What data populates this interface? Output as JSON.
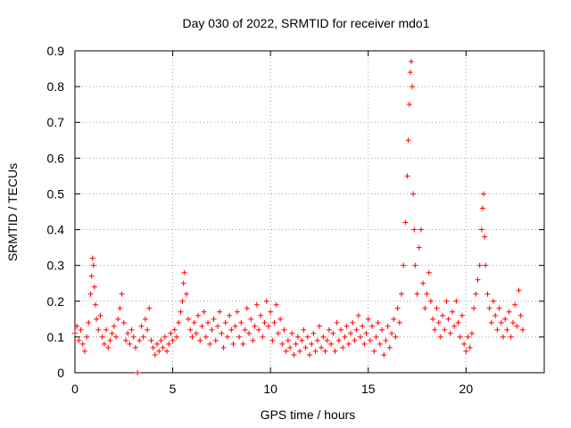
{
  "chart_data": {
    "type": "scatter",
    "title": "Day 030 of 2022, SRMTID for receiver mdo1",
    "xlabel": "GPS time / hours",
    "ylabel": "SRMTID / TECUs",
    "xlim": [
      0,
      24
    ],
    "ylim": [
      0,
      0.9
    ],
    "xticks": [
      "0",
      "5",
      "10",
      "15",
      "20"
    ],
    "yticks": [
      "0",
      "0.1",
      "0.2",
      "0.3",
      "0.4",
      "0.5",
      "0.6",
      "0.7",
      "0.8",
      "0.9"
    ],
    "grid": true,
    "marker": "plus",
    "color": "#ff0000",
    "series": [
      {
        "name": "SRMTID",
        "points": [
          [
            0.0,
            0.11
          ],
          [
            0.1,
            0.13
          ],
          [
            0.2,
            0.09
          ],
          [
            0.3,
            0.12
          ],
          [
            0.4,
            0.08
          ],
          [
            0.5,
            0.06
          ],
          [
            0.6,
            0.1
          ],
          [
            0.7,
            0.14
          ],
          [
            0.8,
            0.22
          ],
          [
            0.85,
            0.27
          ],
          [
            0.9,
            0.32
          ],
          [
            0.95,
            0.3
          ],
          [
            1.0,
            0.24
          ],
          [
            1.05,
            0.19
          ],
          [
            1.1,
            0.15
          ],
          [
            1.2,
            0.12
          ],
          [
            1.3,
            0.16
          ],
          [
            1.4,
            0.1
          ],
          [
            1.5,
            0.08
          ],
          [
            1.6,
            0.12
          ],
          [
            1.7,
            0.07
          ],
          [
            1.8,
            0.09
          ],
          [
            1.9,
            0.11
          ],
          [
            2.0,
            0.13
          ],
          [
            2.1,
            0.1
          ],
          [
            2.2,
            0.15
          ],
          [
            2.3,
            0.18
          ],
          [
            2.4,
            0.22
          ],
          [
            2.5,
            0.14
          ],
          [
            2.6,
            0.09
          ],
          [
            2.7,
            0.11
          ],
          [
            2.8,
            0.08
          ],
          [
            2.9,
            0.12
          ],
          [
            3.0,
            0.1
          ],
          [
            3.1,
            0.07
          ],
          [
            3.2,
            0.0
          ],
          [
            3.3,
            0.09
          ],
          [
            3.4,
            0.13
          ],
          [
            3.5,
            0.1
          ],
          [
            3.6,
            0.15
          ],
          [
            3.7,
            0.12
          ],
          [
            3.8,
            0.18
          ],
          [
            3.9,
            0.09
          ],
          [
            4.0,
            0.07
          ],
          [
            4.1,
            0.05
          ],
          [
            4.2,
            0.08
          ],
          [
            4.3,
            0.06
          ],
          [
            4.4,
            0.09
          ],
          [
            4.5,
            0.07
          ],
          [
            4.6,
            0.1
          ],
          [
            4.7,
            0.06
          ],
          [
            4.8,
            0.08
          ],
          [
            4.9,
            0.11
          ],
          [
            5.0,
            0.09
          ],
          [
            5.1,
            0.12
          ],
          [
            5.2,
            0.1
          ],
          [
            5.3,
            0.14
          ],
          [
            5.4,
            0.17
          ],
          [
            5.5,
            0.2
          ],
          [
            5.55,
            0.25
          ],
          [
            5.6,
            0.28
          ],
          [
            5.7,
            0.22
          ],
          [
            5.8,
            0.15
          ],
          [
            5.9,
            0.12
          ],
          [
            6.0,
            0.1
          ],
          [
            6.1,
            0.14
          ],
          [
            6.2,
            0.11
          ],
          [
            6.3,
            0.16
          ],
          [
            6.4,
            0.09
          ],
          [
            6.5,
            0.13
          ],
          [
            6.6,
            0.17
          ],
          [
            6.7,
            0.1
          ],
          [
            6.8,
            0.14
          ],
          [
            6.9,
            0.08
          ],
          [
            7.0,
            0.12
          ],
          [
            7.1,
            0.15
          ],
          [
            7.2,
            0.09
          ],
          [
            7.3,
            0.13
          ],
          [
            7.4,
            0.17
          ],
          [
            7.5,
            0.11
          ],
          [
            7.6,
            0.07
          ],
          [
            7.7,
            0.14
          ],
          [
            7.8,
            0.1
          ],
          [
            7.9,
            0.16
          ],
          [
            8.0,
            0.12
          ],
          [
            8.1,
            0.08
          ],
          [
            8.2,
            0.13
          ],
          [
            8.3,
            0.17
          ],
          [
            8.4,
            0.1
          ],
          [
            8.5,
            0.14
          ],
          [
            8.6,
            0.08
          ],
          [
            8.7,
            0.12
          ],
          [
            8.8,
            0.18
          ],
          [
            8.9,
            0.11
          ],
          [
            9.0,
            0.15
          ],
          [
            9.1,
            0.09
          ],
          [
            9.2,
            0.13
          ],
          [
            9.3,
            0.19
          ],
          [
            9.4,
            0.12
          ],
          [
            9.5,
            0.16
          ],
          [
            9.6,
            0.1
          ],
          [
            9.7,
            0.14
          ],
          [
            9.8,
            0.2
          ],
          [
            9.9,
            0.13
          ],
          [
            10.0,
            0.17
          ],
          [
            10.1,
            0.09
          ],
          [
            10.2,
            0.14
          ],
          [
            10.3,
            0.19
          ],
          [
            10.4,
            0.11
          ],
          [
            10.5,
            0.15
          ],
          [
            10.6,
            0.08
          ],
          [
            10.7,
            0.12
          ],
          [
            10.8,
            0.06
          ],
          [
            10.9,
            0.09
          ],
          [
            11.0,
            0.07
          ],
          [
            11.1,
            0.11
          ],
          [
            11.2,
            0.05
          ],
          [
            11.3,
            0.08
          ],
          [
            11.4,
            0.1
          ],
          [
            11.5,
            0.06
          ],
          [
            11.6,
            0.09
          ],
          [
            11.7,
            0.12
          ],
          [
            11.8,
            0.07
          ],
          [
            11.9,
            0.1
          ],
          [
            12.0,
            0.05
          ],
          [
            12.1,
            0.08
          ],
          [
            12.2,
            0.11
          ],
          [
            12.3,
            0.06
          ],
          [
            12.4,
            0.09
          ],
          [
            12.5,
            0.13
          ],
          [
            12.6,
            0.07
          ],
          [
            12.7,
            0.1
          ],
          [
            12.8,
            0.06
          ],
          [
            12.9,
            0.09
          ],
          [
            13.0,
            0.12
          ],
          [
            13.1,
            0.08
          ],
          [
            13.2,
            0.11
          ],
          [
            13.3,
            0.06
          ],
          [
            13.4,
            0.14
          ],
          [
            13.5,
            0.09
          ],
          [
            13.6,
            0.12
          ],
          [
            13.7,
            0.07
          ],
          [
            13.8,
            0.1
          ],
          [
            13.9,
            0.13
          ],
          [
            14.0,
            0.08
          ],
          [
            14.1,
            0.11
          ],
          [
            14.2,
            0.14
          ],
          [
            14.3,
            0.09
          ],
          [
            14.4,
            0.12
          ],
          [
            14.5,
            0.16
          ],
          [
            14.6,
            0.1
          ],
          [
            14.7,
            0.13
          ],
          [
            14.8,
            0.08
          ],
          [
            14.9,
            0.11
          ],
          [
            15.0,
            0.15
          ],
          [
            15.1,
            0.09
          ],
          [
            15.2,
            0.13
          ],
          [
            15.3,
            0.06
          ],
          [
            15.4,
            0.1
          ],
          [
            15.5,
            0.14
          ],
          [
            15.6,
            0.08
          ],
          [
            15.7,
            0.12
          ],
          [
            15.8,
            0.05
          ],
          [
            15.9,
            0.09
          ],
          [
            16.0,
            0.13
          ],
          [
            16.1,
            0.07
          ],
          [
            16.2,
            0.11
          ],
          [
            16.3,
            0.15
          ],
          [
            16.4,
            0.1
          ],
          [
            16.5,
            0.18
          ],
          [
            16.6,
            0.14
          ],
          [
            16.7,
            0.22
          ],
          [
            16.8,
            0.3
          ],
          [
            16.9,
            0.42
          ],
          [
            17.0,
            0.55
          ],
          [
            17.05,
            0.65
          ],
          [
            17.1,
            0.75
          ],
          [
            17.15,
            0.84
          ],
          [
            17.2,
            0.87
          ],
          [
            17.25,
            0.8
          ],
          [
            17.3,
            0.5
          ],
          [
            17.35,
            0.4
          ],
          [
            17.4,
            0.3
          ],
          [
            17.5,
            0.22
          ],
          [
            17.6,
            0.35
          ],
          [
            17.7,
            0.4
          ],
          [
            17.8,
            0.25
          ],
          [
            17.9,
            0.18
          ],
          [
            18.0,
            0.22
          ],
          [
            18.1,
            0.28
          ],
          [
            18.2,
            0.2
          ],
          [
            18.3,
            0.15
          ],
          [
            18.4,
            0.12
          ],
          [
            18.5,
            0.18
          ],
          [
            18.6,
            0.14
          ],
          [
            18.7,
            0.1
          ],
          [
            18.8,
            0.16
          ],
          [
            18.9,
            0.12
          ],
          [
            19.0,
            0.2
          ],
          [
            19.1,
            0.15
          ],
          [
            19.2,
            0.11
          ],
          [
            19.3,
            0.17
          ],
          [
            19.4,
            0.13
          ],
          [
            19.5,
            0.2
          ],
          [
            19.6,
            0.14
          ],
          [
            19.7,
            0.1
          ],
          [
            19.8,
            0.16
          ],
          [
            19.9,
            0.08
          ],
          [
            20.0,
            0.06
          ],
          [
            20.1,
            0.1
          ],
          [
            20.2,
            0.07
          ],
          [
            20.3,
            0.11
          ],
          [
            20.4,
            0.18
          ],
          [
            20.5,
            0.22
          ],
          [
            20.6,
            0.26
          ],
          [
            20.7,
            0.3
          ],
          [
            20.8,
            0.4
          ],
          [
            20.85,
            0.46
          ],
          [
            20.9,
            0.5
          ],
          [
            20.95,
            0.38
          ],
          [
            21.0,
            0.3
          ],
          [
            21.1,
            0.22
          ],
          [
            21.2,
            0.18
          ],
          [
            21.3,
            0.14
          ],
          [
            21.4,
            0.2
          ],
          [
            21.5,
            0.16
          ],
          [
            21.6,
            0.12
          ],
          [
            21.7,
            0.18
          ],
          [
            21.8,
            0.14
          ],
          [
            21.9,
            0.1
          ],
          [
            22.0,
            0.15
          ],
          [
            22.1,
            0.12
          ],
          [
            22.2,
            0.17
          ],
          [
            22.3,
            0.1
          ],
          [
            22.4,
            0.14
          ],
          [
            22.5,
            0.19
          ],
          [
            22.6,
            0.13
          ],
          [
            22.7,
            0.23
          ],
          [
            22.8,
            0.16
          ],
          [
            22.9,
            0.12
          ]
        ]
      }
    ]
  }
}
